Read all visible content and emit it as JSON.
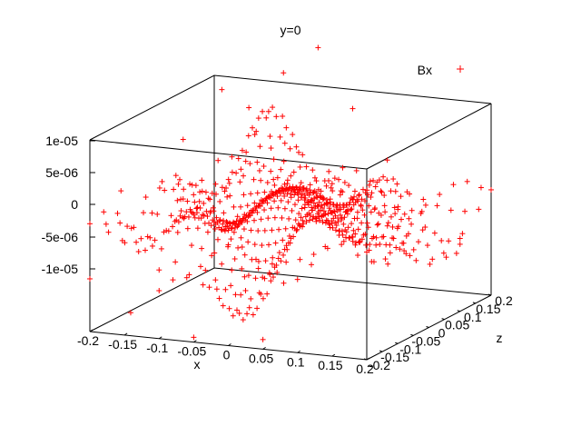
{
  "chart_data": {
    "type": "scatter",
    "title": "y=0",
    "xlabel": "x",
    "ylabel": "",
    "zlabel": "z",
    "legend": {
      "placement": "top-right",
      "entries": [
        "Bx"
      ]
    },
    "marker": "+",
    "series_color": "#ff0000",
    "xlim": [
      -0.2,
      0.2
    ],
    "zlim": [
      -0.2,
      0.2
    ],
    "vlim": [
      -1e-05,
      1e-05
    ],
    "x_ticks": [
      "-0.2",
      "-0.15",
      "-0.1",
      "-0.05",
      "0",
      "0.05",
      "0.1",
      "0.15",
      "0.2"
    ],
    "z_ticks": [
      "-0.2",
      "-0.15",
      "-0.1",
      "-0.05",
      "0",
      "0.05",
      "0.1",
      "0.15",
      "0.2"
    ],
    "v_ticks": [
      "1e-05",
      "5e-06",
      "0",
      "-5e-06",
      "-1e-05"
    ],
    "series": [
      {
        "name": "Bx",
        "grid": {
          "x_steps": 41,
          "z_steps": 41
        },
        "points": [
          [
            -0.2,
            -0.2,
            -4.5e-06
          ],
          [
            -0.18,
            0.18,
            9e-06
          ],
          [
            -0.15,
            0.2,
            7e-06
          ],
          [
            -0.1,
            0.2,
            1.1e-05
          ],
          [
            -0.05,
            0.2,
            1.4e-05
          ],
          [
            0.0,
            0.2,
            8e-06
          ],
          [
            0.05,
            0.2,
            3e-06
          ],
          [
            0.1,
            0.2,
            -2e-06
          ],
          [
            0.15,
            0.2,
            -6e-06
          ],
          [
            0.2,
            0.2,
            1e-06
          ],
          [
            0.2,
            0.1,
            -3e-06
          ],
          [
            0.2,
            -0.1,
            4e-06
          ],
          [
            0.15,
            -0.2,
            8e-06
          ],
          [
            0.05,
            -0.2,
            -9e-06
          ],
          [
            -0.05,
            -0.2,
            -9.5e-06
          ],
          [
            -0.1,
            -0.2,
            -5e-06
          ],
          [
            -0.15,
            -0.18,
            -8e-06
          ],
          [
            -0.2,
            -0.1,
            3e-06
          ],
          [
            -0.2,
            0.0,
            -1e-06
          ],
          [
            -0.2,
            0.1,
            5e-06
          ]
        ]
      }
    ]
  }
}
